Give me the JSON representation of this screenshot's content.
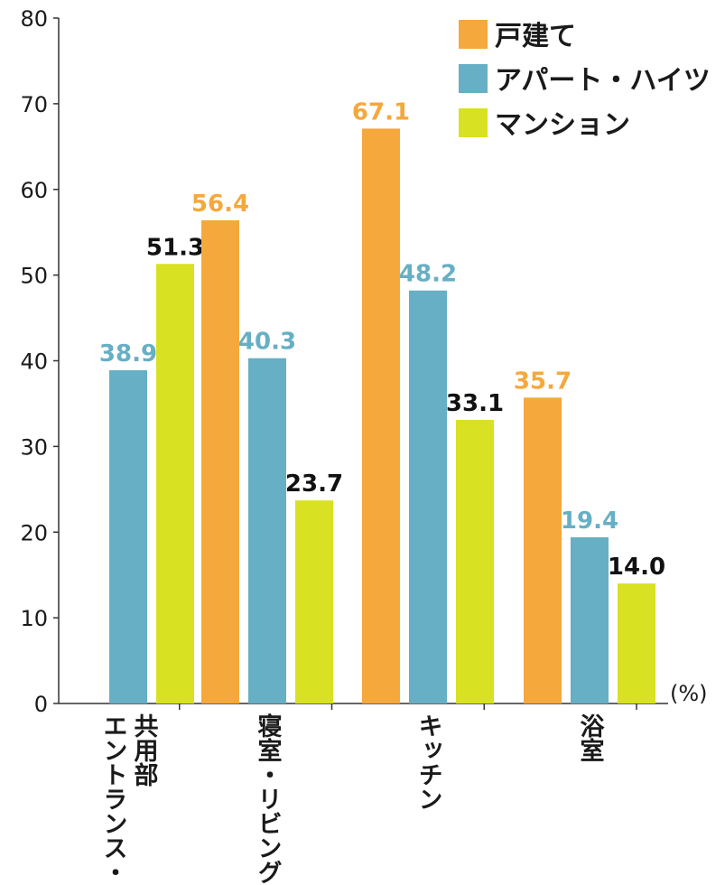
{
  "chart_data": {
    "type": "bar",
    "title": "",
    "xlabel": "",
    "ylabel": "",
    "unit": "(%)",
    "ylim": [
      0,
      80
    ],
    "yticks": [
      0,
      10,
      20,
      30,
      40,
      50,
      60,
      70,
      80
    ],
    "grid": false,
    "legend_position": "top-right",
    "categories": [
      [
        "共用部",
        "エントランス・"
      ],
      [
        "寝室・リビング"
      ],
      [
        "キッチン"
      ],
      [
        "浴室"
      ]
    ],
    "series": [
      {
        "name": "戸建て",
        "color": "#F5A83C",
        "label_color": "#F5A83C",
        "values": [
          null,
          56.4,
          67.1,
          35.7
        ]
      },
      {
        "name": "アパート・ハイツ",
        "color": "#67AFC4",
        "label_color": "#67AFC4",
        "values": [
          38.9,
          40.3,
          48.2,
          19.4
        ]
      },
      {
        "name": "マンション",
        "color": "#D8E122",
        "label_color": "#111111",
        "values": [
          51.3,
          23.7,
          33.1,
          14.0
        ]
      }
    ]
  }
}
